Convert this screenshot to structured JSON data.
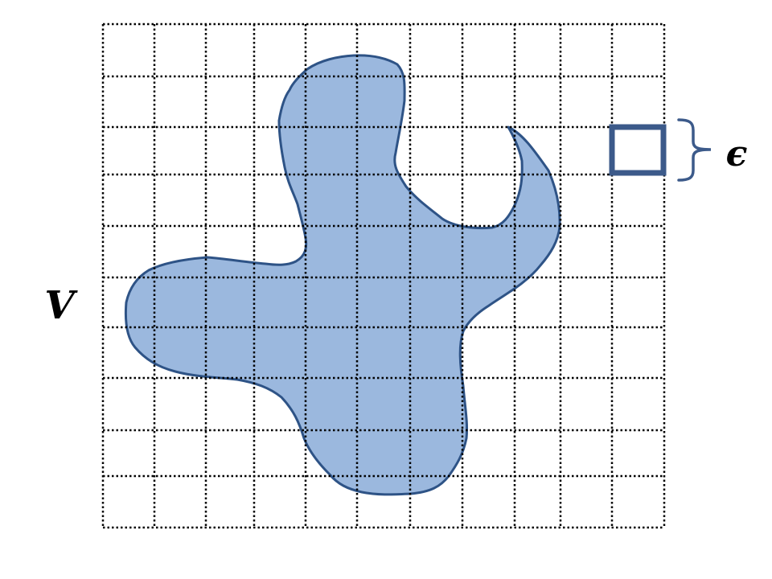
{
  "labels": {
    "set_label": "V",
    "cell_size_label": "ϵ"
  },
  "grid": {
    "columns": 11,
    "rows": 10,
    "line_style": "dotted",
    "line_color": "#000000"
  },
  "region": {
    "fill_color": "#9BB8DE",
    "stroke_color": "#2E5386"
  },
  "reference_square": {
    "stroke_color": "#3C5A8A"
  },
  "brace_color": "#3C5A8A"
}
